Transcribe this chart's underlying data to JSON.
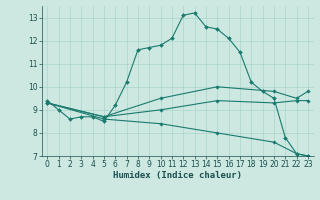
{
  "title": "",
  "xlabel": "Humidex (Indice chaleur)",
  "bg_color": "#cce8e0",
  "line_color": "#1a7a6e",
  "grid_color": "#aad4cc",
  "xlim": [
    -0.5,
    23.5
  ],
  "ylim": [
    7,
    13.5
  ],
  "yticks": [
    7,
    8,
    9,
    10,
    11,
    12,
    13
  ],
  "xticks": [
    0,
    1,
    2,
    3,
    4,
    5,
    6,
    7,
    8,
    9,
    10,
    11,
    12,
    13,
    14,
    15,
    16,
    17,
    18,
    19,
    20,
    21,
    22,
    23
  ],
  "line_main": {
    "x": [
      0,
      1,
      2,
      3,
      4,
      5,
      6,
      7,
      8,
      9,
      10,
      11,
      12,
      13,
      14,
      15,
      16,
      17,
      18,
      19,
      20,
      21,
      22,
      23
    ],
    "y": [
      9.4,
      9.0,
      8.6,
      8.7,
      8.7,
      8.5,
      9.2,
      10.2,
      11.6,
      11.7,
      11.8,
      12.1,
      13.1,
      13.2,
      12.6,
      12.5,
      12.1,
      11.5,
      10.2,
      9.8,
      9.5,
      7.8,
      7.1,
      7.0
    ]
  },
  "line2": {
    "x": [
      0,
      5,
      10,
      15,
      20,
      22,
      23
    ],
    "y": [
      9.3,
      8.7,
      9.5,
      10.0,
      9.8,
      9.5,
      9.8
    ]
  },
  "line3": {
    "x": [
      0,
      5,
      10,
      15,
      20,
      22,
      23
    ],
    "y": [
      9.3,
      8.7,
      9.0,
      9.4,
      9.3,
      9.4,
      9.4
    ]
  },
  "line4": {
    "x": [
      0,
      5,
      10,
      15,
      20,
      22,
      23
    ],
    "y": [
      9.3,
      8.6,
      8.4,
      8.0,
      7.6,
      7.1,
      7.0
    ]
  },
  "tick_fontsize": 5.5,
  "xlabel_fontsize": 6.5
}
